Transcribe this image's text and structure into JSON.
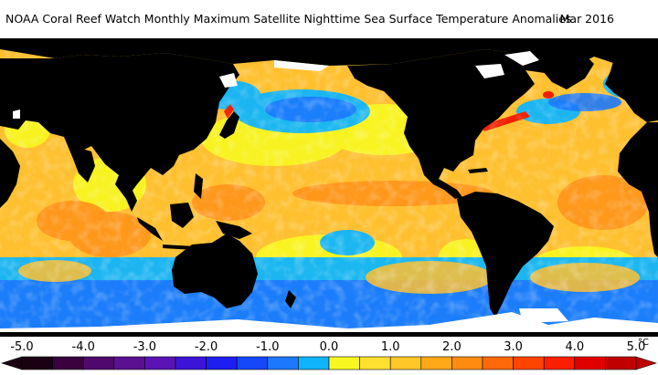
{
  "header": {
    "title": "NOAA Coral Reef Watch Monthly Maximum Satellite Nighttime Sea Surface Temperature Anomalies",
    "date": "Mar 2016"
  },
  "legend": {
    "unit": "°C",
    "ticks": [
      {
        "value": -5.0,
        "label": "-5.0"
      },
      {
        "value": -4.0,
        "label": "-4.0"
      },
      {
        "value": -3.0,
        "label": "-3.0"
      },
      {
        "value": -2.0,
        "label": "-2.0"
      },
      {
        "value": -1.0,
        "label": "-1.0"
      },
      {
        "value": 0.0,
        "label": "0.0"
      },
      {
        "value": 1.0,
        "label": "1.0"
      },
      {
        "value": 2.0,
        "label": "2.0"
      },
      {
        "value": 3.0,
        "label": "3.0"
      },
      {
        "value": 4.0,
        "label": "4.0"
      },
      {
        "value": 5.0,
        "label": "5.0"
      }
    ],
    "range": [
      -5.0,
      5.0
    ],
    "bins": [
      {
        "from": -5.0,
        "to": -4.5,
        "color": "#1a0012"
      },
      {
        "from": -4.5,
        "to": -4.0,
        "color": "#3a0040"
      },
      {
        "from": -4.0,
        "to": -3.5,
        "color": "#50086c"
      },
      {
        "from": -3.5,
        "to": -3.0,
        "color": "#5a1090"
      },
      {
        "from": -3.0,
        "to": -2.5,
        "color": "#5a14b4"
      },
      {
        "from": -2.5,
        "to": -2.0,
        "color": "#3c14d8"
      },
      {
        "from": -2.0,
        "to": -1.5,
        "color": "#1e1ef0"
      },
      {
        "from": -1.5,
        "to": -1.0,
        "color": "#1448f8"
      },
      {
        "from": -1.0,
        "to": -0.5,
        "color": "#1c78fc"
      },
      {
        "from": -0.5,
        "to": 0.0,
        "color": "#10b4fc"
      },
      {
        "from": 0.0,
        "to": 0.5,
        "color": "#f8f820"
      },
      {
        "from": 0.5,
        "to": 1.0,
        "color": "#ffe030"
      },
      {
        "from": 1.0,
        "to": 1.5,
        "color": "#ffc828"
      },
      {
        "from": 1.5,
        "to": 2.0,
        "color": "#ffa818"
      },
      {
        "from": 2.0,
        "to": 2.5,
        "color": "#ff8c10"
      },
      {
        "from": 2.5,
        "to": 3.0,
        "color": "#ff6808"
      },
      {
        "from": 3.0,
        "to": 3.5,
        "color": "#ff4400"
      },
      {
        "from": 3.5,
        "to": 4.0,
        "color": "#f82000"
      },
      {
        "from": 4.0,
        "to": 4.5,
        "color": "#e00000"
      },
      {
        "from": 4.5,
        "to": 5.0,
        "color": "#c00000"
      }
    ]
  },
  "colors": {
    "land": "#000000",
    "ice": "#ffffff",
    "ocean_warm": "#ffc030",
    "ocean_mild": "#f8f820",
    "ocean_cool": "#10b4fc",
    "ocean_cold": "#1c78fc"
  }
}
